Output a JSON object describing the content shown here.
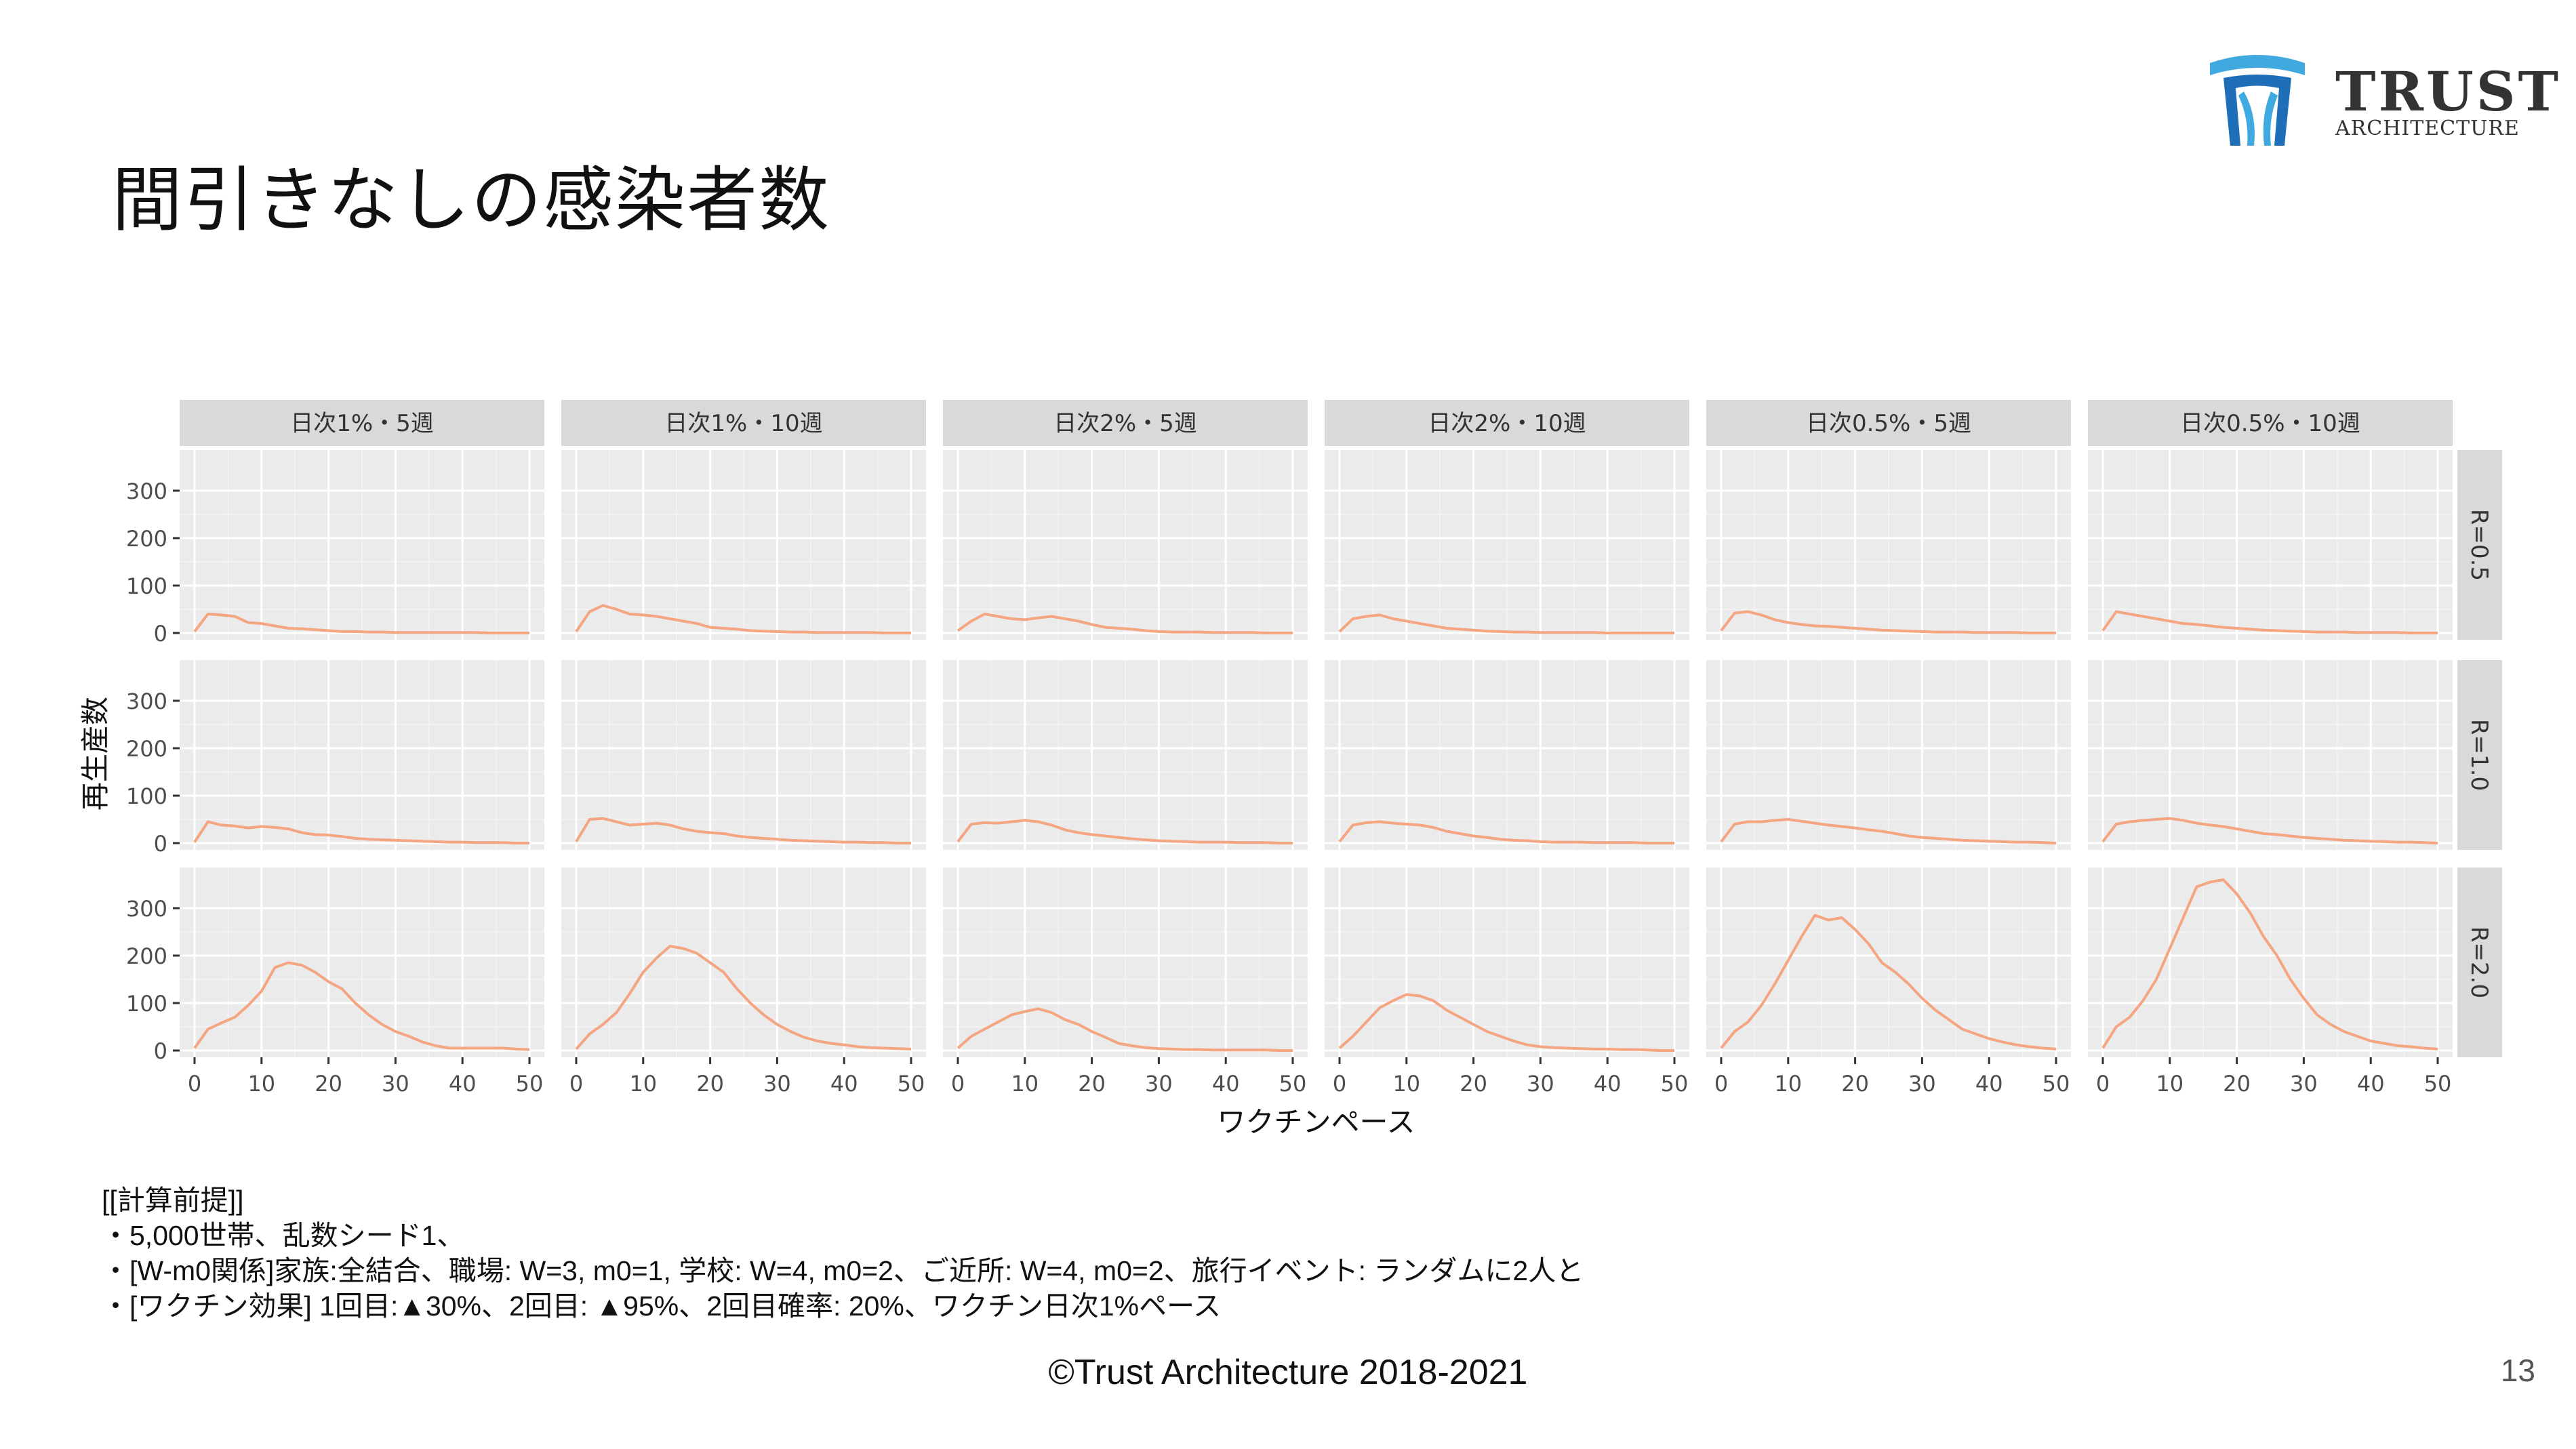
{
  "slide": {
    "title": "間引きなしの感染者数",
    "logo_text_main": "TRUST",
    "logo_text_sub": "ARCHITECTURE",
    "notes": [
      "[[計算前提]]",
      "・5,000世帯、乱数シード1、",
      "・[W-m0関係]家族:全結合、職場: W=3, m0=1, 学校: W=4, m0=2、ご近所: W=4, m0=2、旅行イベント: ランダムに2人と",
      "・[ワクチン効果] 1回目:▲30%、2回目: ▲95%、2回目確率: 20%、ワクチン日次1%ペース"
    ],
    "copyright": "©Trust Architecture 2018-2021",
    "page_number": "13",
    "logo_colors": [
      "#3fa9e0",
      "#1e6fb8"
    ]
  },
  "chart_data": {
    "type": "line",
    "layout": "facet-grid",
    "xlabel": "ワクチンペース",
    "ylabel": "再生産数",
    "xlim": [
      0,
      50
    ],
    "ylim": [
      0,
      350
    ],
    "x_ticks": [
      "0",
      "10",
      "20",
      "30",
      "40",
      "50"
    ],
    "y_ticks": [
      "0",
      "100",
      "200",
      "300"
    ],
    "line_color": "#f4a582",
    "panel_bg": "#ebebeb",
    "strip_bg": "#d9d9d9",
    "columns": [
      "日次1%・5週",
      "日次1%・10週",
      "日次2%・5週",
      "日次2%・10週",
      "日次0.5%・5週",
      "日次0.5%・10週"
    ],
    "rows": [
      "R=0.5",
      "R=1.0",
      "R=2.0"
    ],
    "x": [
      0,
      2,
      4,
      6,
      8,
      10,
      12,
      14,
      16,
      18,
      20,
      22,
      24,
      26,
      28,
      30,
      32,
      34,
      36,
      38,
      40,
      42,
      44,
      46,
      48,
      50
    ],
    "series": [
      [
        [
          3,
          40,
          38,
          35,
          22,
          20,
          15,
          10,
          9,
          7,
          5,
          3,
          3,
          2,
          2,
          1,
          1,
          1,
          1,
          1,
          1,
          1,
          0,
          0,
          0,
          0
        ],
        [
          3,
          45,
          58,
          50,
          40,
          38,
          35,
          30,
          25,
          20,
          12,
          10,
          8,
          5,
          4,
          3,
          2,
          2,
          1,
          1,
          1,
          1,
          1,
          0,
          0,
          0
        ],
        [
          5,
          25,
          40,
          35,
          30,
          28,
          32,
          35,
          30,
          25,
          18,
          12,
          10,
          8,
          5,
          3,
          2,
          2,
          2,
          1,
          1,
          1,
          1,
          0,
          0,
          0
        ],
        [
          3,
          30,
          35,
          38,
          30,
          25,
          20,
          15,
          10,
          8,
          6,
          4,
          3,
          2,
          2,
          1,
          1,
          1,
          1,
          1,
          0,
          0,
          0,
          0,
          0,
          0
        ],
        [
          5,
          42,
          45,
          38,
          28,
          22,
          18,
          15,
          14,
          12,
          10,
          8,
          6,
          5,
          4,
          3,
          2,
          2,
          2,
          1,
          1,
          1,
          1,
          0,
          0,
          0
        ],
        [
          5,
          45,
          40,
          35,
          30,
          25,
          20,
          18,
          15,
          12,
          10,
          8,
          6,
          5,
          4,
          3,
          2,
          2,
          2,
          1,
          1,
          1,
          1,
          0,
          0,
          0
        ]
      ],
      [
        [
          2,
          45,
          38,
          36,
          32,
          35,
          33,
          30,
          22,
          18,
          17,
          14,
          10,
          8,
          7,
          6,
          5,
          4,
          3,
          2,
          2,
          1,
          1,
          1,
          0,
          0
        ],
        [
          3,
          50,
          52,
          45,
          38,
          40,
          42,
          38,
          30,
          25,
          22,
          20,
          15,
          12,
          10,
          8,
          6,
          5,
          4,
          3,
          2,
          2,
          1,
          1,
          0,
          0
        ],
        [
          3,
          40,
          43,
          42,
          45,
          48,
          45,
          38,
          28,
          22,
          18,
          15,
          12,
          9,
          7,
          5,
          4,
          3,
          2,
          2,
          2,
          1,
          1,
          1,
          0,
          0
        ],
        [
          3,
          38,
          43,
          45,
          42,
          40,
          38,
          33,
          25,
          20,
          15,
          12,
          8,
          6,
          5,
          3,
          2,
          2,
          2,
          1,
          1,
          1,
          1,
          0,
          0,
          0
        ],
        [
          3,
          40,
          45,
          45,
          48,
          50,
          46,
          42,
          38,
          35,
          32,
          28,
          25,
          20,
          15,
          12,
          10,
          8,
          6,
          5,
          4,
          3,
          2,
          2,
          1,
          0
        ],
        [
          3,
          40,
          45,
          48,
          50,
          52,
          48,
          42,
          38,
          35,
          30,
          25,
          20,
          18,
          15,
          12,
          10,
          8,
          6,
          5,
          4,
          3,
          2,
          2,
          1,
          0
        ]
      ],
      [
        [
          5,
          45,
          58,
          70,
          95,
          125,
          175,
          185,
          180,
          165,
          145,
          130,
          100,
          75,
          55,
          40,
          30,
          18,
          10,
          5,
          5,
          5,
          5,
          5,
          3,
          2
        ],
        [
          3,
          35,
          55,
          80,
          120,
          165,
          195,
          220,
          215,
          205,
          185,
          165,
          130,
          100,
          75,
          55,
          40,
          28,
          20,
          15,
          12,
          8,
          6,
          5,
          4,
          3
        ],
        [
          5,
          30,
          45,
          60,
          75,
          82,
          88,
          80,
          65,
          55,
          40,
          28,
          15,
          10,
          6,
          4,
          3,
          2,
          2,
          1,
          1,
          1,
          1,
          1,
          0,
          0
        ],
        [
          5,
          30,
          60,
          90,
          105,
          118,
          115,
          105,
          85,
          70,
          55,
          40,
          30,
          20,
          12,
          8,
          6,
          5,
          4,
          3,
          3,
          2,
          2,
          1,
          0,
          0
        ],
        [
          5,
          40,
          60,
          95,
          140,
          190,
          240,
          285,
          275,
          280,
          255,
          225,
          185,
          165,
          140,
          110,
          85,
          65,
          45,
          35,
          25,
          18,
          12,
          8,
          5,
          3
        ],
        [
          5,
          50,
          70,
          105,
          150,
          215,
          280,
          345,
          355,
          360,
          330,
          290,
          240,
          200,
          150,
          110,
          75,
          55,
          40,
          30,
          20,
          15,
          10,
          8,
          5,
          3
        ]
      ]
    ]
  }
}
